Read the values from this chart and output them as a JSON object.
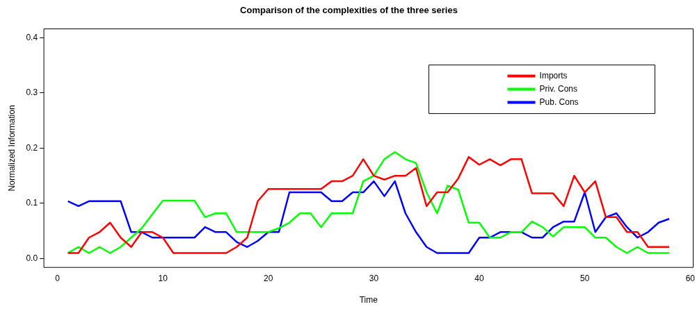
{
  "chart_data": {
    "type": "line",
    "title": "Comparison of the complexities of the three series",
    "xlabel": "Time",
    "ylabel": "Normalized Information",
    "x": [
      1,
      2,
      3,
      4,
      5,
      6,
      7,
      8,
      9,
      10,
      11,
      12,
      13,
      14,
      15,
      16,
      17,
      18,
      19,
      20,
      21,
      22,
      23,
      24,
      25,
      26,
      27,
      28,
      29,
      30,
      31,
      32,
      33,
      34,
      35,
      36,
      37,
      38,
      39,
      40,
      41,
      42,
      43,
      44,
      45,
      46,
      47,
      48,
      49,
      50,
      51,
      52,
      53,
      54,
      55,
      56,
      57,
      58
    ],
    "series": [
      {
        "name": "Imports",
        "color": "#ff0000",
        "values": [
          0.01,
          0.01,
          0.038,
          0.048,
          0.065,
          0.038,
          0.021,
          0.048,
          0.048,
          0.038,
          0.01,
          0.01,
          0.01,
          0.01,
          0.01,
          0.01,
          0.021,
          0.038,
          0.104,
          0.126,
          0.126,
          0.126,
          0.126,
          0.126,
          0.126,
          0.14,
          0.14,
          0.15,
          0.18,
          0.15,
          0.143,
          0.15,
          0.15,
          0.164,
          0.095,
          0.12,
          0.12,
          0.145,
          0.184,
          0.17,
          0.18,
          0.169,
          0.18,
          0.18,
          0.118,
          0.118,
          0.118,
          0.095,
          0.15,
          0.12,
          0.14,
          0.075,
          0.075,
          0.048,
          0.048,
          0.021,
          0.021,
          0.021
        ]
      },
      {
        "name": "Priv. Cons",
        "color": "#00ff00",
        "values": [
          0.01,
          0.021,
          0.01,
          0.021,
          0.01,
          0.021,
          0.038,
          0.055,
          0.08,
          0.105,
          0.105,
          0.105,
          0.105,
          0.075,
          0.082,
          0.082,
          0.048,
          0.048,
          0.048,
          0.048,
          0.055,
          0.065,
          0.082,
          0.082,
          0.057,
          0.082,
          0.082,
          0.082,
          0.14,
          0.15,
          0.18,
          0.193,
          0.18,
          0.173,
          0.12,
          0.082,
          0.132,
          0.125,
          0.065,
          0.065,
          0.038,
          0.038,
          0.048,
          0.048,
          0.067,
          0.057,
          0.04,
          0.057,
          0.057,
          0.057,
          0.038,
          0.038,
          0.021,
          0.01,
          0.021,
          0.01,
          0.01,
          0.01
        ]
      },
      {
        "name": "Pub. Cons",
        "color": "#0000ff",
        "values": [
          0.104,
          0.095,
          0.104,
          0.104,
          0.104,
          0.104,
          0.048,
          0.048,
          0.038,
          0.038,
          0.038,
          0.038,
          0.038,
          0.057,
          0.048,
          0.048,
          0.03,
          0.021,
          0.032,
          0.048,
          0.048,
          0.12,
          0.12,
          0.12,
          0.12,
          0.104,
          0.104,
          0.12,
          0.12,
          0.14,
          0.113,
          0.14,
          0.082,
          0.048,
          0.021,
          0.01,
          0.01,
          0.01,
          0.01,
          0.038,
          0.038,
          0.048,
          0.048,
          0.048,
          0.038,
          0.038,
          0.057,
          0.067,
          0.067,
          0.12,
          0.048,
          0.075,
          0.082,
          0.057,
          0.038,
          0.048,
          0.065,
          0.072
        ]
      }
    ],
    "xlim": [
      -1.28,
      60.28
    ],
    "xticks": [
      0,
      10,
      20,
      30,
      40,
      50,
      60
    ],
    "ylim": [
      -0.016,
      0.416
    ],
    "yticks": [
      {
        "value": 0,
        "label": "0.0"
      },
      {
        "value": 0.1,
        "label": "0.1"
      },
      {
        "value": 0.2,
        "label": "0.2"
      },
      {
        "value": 0.3,
        "label": "0.3"
      },
      {
        "value": 0.4,
        "label": "0.4"
      }
    ],
    "legend": "top right",
    "grid": false,
    "marker": "none",
    "line_style": "solid"
  }
}
